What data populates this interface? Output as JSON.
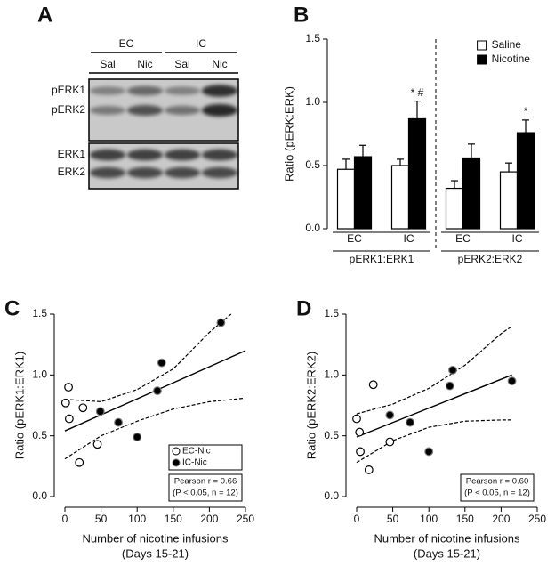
{
  "chart_data": [
    {
      "type": "blot",
      "panel_label": "A",
      "groups": [
        "EC",
        "IC"
      ],
      "lanes": [
        "Sal",
        "Nic",
        "Sal",
        "Nic"
      ],
      "rows": [
        "pERK1",
        "pERK2",
        "ERK1",
        "ERK2"
      ]
    },
    {
      "type": "bar",
      "panel_label": "B",
      "ylabel": "Ratio (pERK:ERK)",
      "categories": [
        "EC",
        "IC",
        "EC",
        "IC"
      ],
      "groups": [
        "pERK1:ERK1",
        "pERK2:ERK2"
      ],
      "series": [
        {
          "name": "Saline",
          "color": "#ffffff",
          "values": [
            0.47,
            0.5,
            0.32,
            0.45
          ],
          "errors": [
            0.08,
            0.05,
            0.06,
            0.07
          ]
        },
        {
          "name": "Nicotine",
          "color": "#000000",
          "values": [
            0.57,
            0.87,
            0.56,
            0.76
          ],
          "errors": [
            0.09,
            0.14,
            0.11,
            0.1
          ],
          "annotations": [
            null,
            "* #",
            null,
            "*"
          ]
        }
      ],
      "ylim": [
        0,
        1.5
      ],
      "yticks": [
        {
          "value": 0,
          "label": "0.0"
        },
        0.5,
        {
          "value": 1,
          "label": "1.0"
        },
        1.5
      ],
      "legend": "upper right"
    },
    {
      "type": "scatter",
      "panel_label": "C",
      "ylabel": "Ratio (pERK1:ERK1)",
      "xlabel": [
        "Number of nicotine infusions",
        "(Days 15-21)"
      ],
      "xlim": [
        0,
        250
      ],
      "xticks": [
        0,
        50,
        100,
        150,
        200,
        250
      ],
      "ylim": [
        0,
        1.5
      ],
      "yticks": [
        {
          "value": 0,
          "label": "0.0"
        },
        0.5,
        {
          "value": 1,
          "label": "1.0"
        },
        1.5
      ],
      "series": [
        {
          "name": "EC-Nic",
          "color": "#ffffff",
          "x": [
            5,
            1,
            25,
            6,
            45,
            20
          ],
          "values": [
            0.9,
            0.77,
            0.73,
            0.64,
            0.43,
            0.28
          ]
        },
        {
          "name": "IC-Nic",
          "color": "#000000",
          "x": [
            49,
            74,
            100,
            128,
            134,
            216
          ],
          "values": [
            0.7,
            0.61,
            0.49,
            0.87,
            1.1,
            1.43
          ]
        }
      ],
      "lines": [
        {
          "style": "solid",
          "x": [
            0,
            250
          ],
          "values": [
            0.54,
            1.2
          ]
        },
        {
          "style": "dashed",
          "x": [
            0,
            50,
            100,
            150,
            200,
            230
          ],
          "values": [
            0.8,
            0.78,
            0.88,
            1.05,
            1.35,
            1.5
          ]
        },
        {
          "style": "dashed",
          "x": [
            0,
            50,
            100,
            150,
            200,
            250
          ],
          "values": [
            0.31,
            0.5,
            0.62,
            0.72,
            0.78,
            0.81
          ]
        }
      ],
      "stats": [
        "Pearson r = 0.66",
        "(P < 0.05, n = 12)"
      ],
      "legend": "lower right"
    },
    {
      "type": "scatter",
      "panel_label": "D",
      "ylabel": "Ratio (pERK2:ERK2)",
      "xlabel": [
        "Number of nicotine infusions",
        "(Days 15-21)"
      ],
      "xlim": [
        0,
        250
      ],
      "xticks": [
        0,
        50,
        100,
        150,
        200,
        250
      ],
      "ylim": [
        0,
        1.5
      ],
      "yticks": [
        {
          "value": 0,
          "label": "0.0"
        },
        0.5,
        {
          "value": 1,
          "label": "1.0"
        },
        1.5
      ],
      "series": [
        {
          "color": "#ffffff",
          "x": [
            23,
            0,
            4,
            5,
            17,
            46
          ],
          "values": [
            0.92,
            0.64,
            0.53,
            0.37,
            0.22,
            0.45
          ]
        },
        {
          "color": "#000000",
          "x": [
            46,
            74,
            100,
            129,
            133,
            215
          ],
          "values": [
            0.67,
            0.61,
            0.37,
            0.91,
            1.04,
            0.95
          ]
        }
      ],
      "lines": [
        {
          "style": "solid",
          "x": [
            0,
            215
          ],
          "values": [
            0.49,
            1.0
          ]
        },
        {
          "style": "dashed",
          "x": [
            0,
            50,
            100,
            150,
            200,
            215
          ],
          "values": [
            0.68,
            0.76,
            0.89,
            1.08,
            1.34,
            1.4
          ]
        },
        {
          "style": "dashed",
          "x": [
            0,
            50,
            100,
            150,
            200,
            215
          ],
          "values": [
            0.28,
            0.46,
            0.57,
            0.62,
            0.63,
            0.63
          ]
        }
      ],
      "stats": [
        "Pearson r = 0.60",
        "(P < 0.05, n = 12)"
      ]
    }
  ]
}
